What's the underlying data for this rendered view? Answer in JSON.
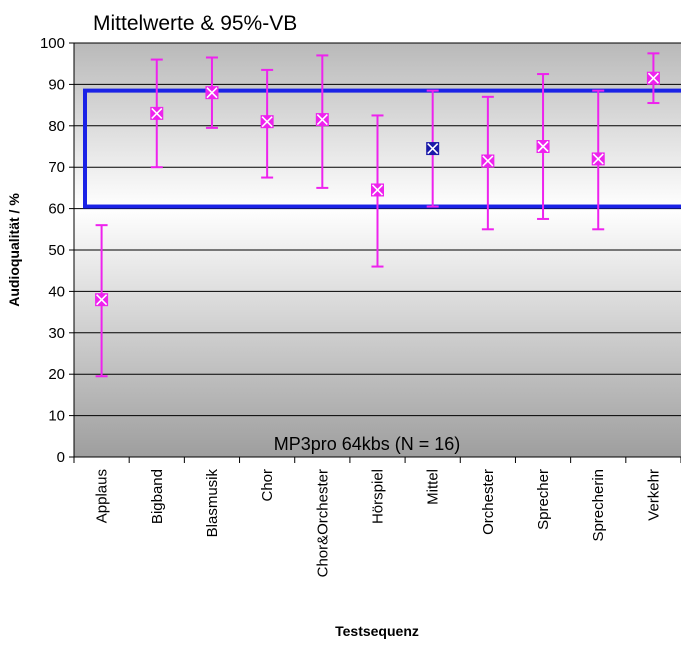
{
  "chart_data": {
    "type": "scatter",
    "title": "Mittelwerte & 95%-VB",
    "xlabel": "Testsequenz",
    "ylabel": "Audioqualität / %",
    "annotation": "MP3pro 64kbs (N = 16)",
    "ylim": [
      0,
      100
    ],
    "yticks": [
      0,
      10,
      20,
      30,
      40,
      50,
      60,
      70,
      80,
      90,
      100
    ],
    "grid": true,
    "legend": "none",
    "categories": [
      "Applaus",
      "Bigband",
      "Blasmusik",
      "Chor",
      "Chor&Orchester",
      "Hörspiel",
      "Mittel",
      "Orchester",
      "Sprecher",
      "Sprecherin",
      "Verkehr"
    ],
    "series": [
      {
        "values": [
          38,
          83,
          88,
          81,
          81.5,
          64.5,
          74.5,
          71.5,
          75,
          72,
          91.5
        ],
        "lower": [
          19.5,
          70,
          79.5,
          67.5,
          65,
          46,
          60.5,
          55,
          57.5,
          55,
          85.5
        ],
        "upper": [
          56,
          96,
          96.5,
          93.5,
          97,
          82.5,
          88.5,
          87,
          92.5,
          88.5,
          97.5
        ]
      }
    ],
    "highlight_band": [
      60.5,
      88.5
    ],
    "colors": {
      "errorbar": "#ee22ee",
      "marker_fill": "#ee22ee",
      "mean_marker_fill": "#1a1aa8",
      "band": "#1a22e6",
      "gridline": "#000000"
    }
  }
}
